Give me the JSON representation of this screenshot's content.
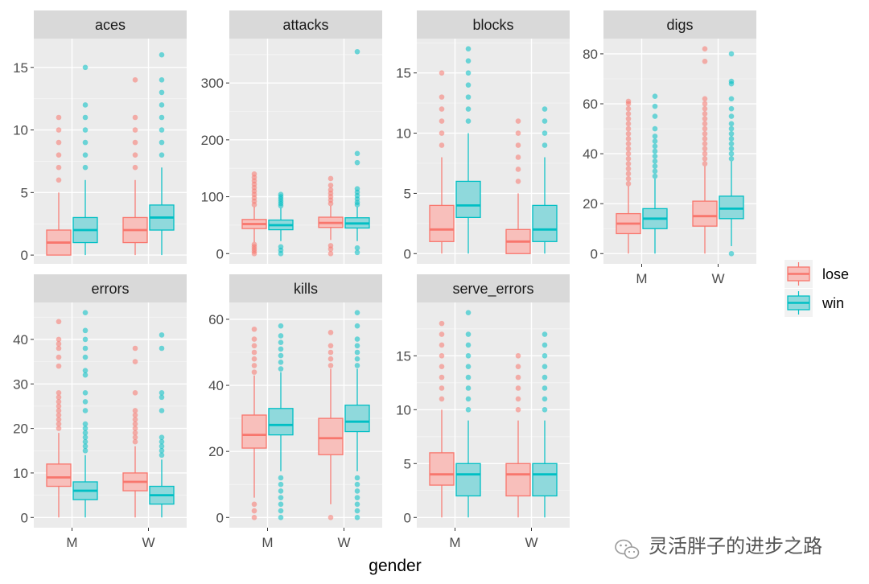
{
  "chart_data": {
    "type": "boxplot",
    "x_title": "gender",
    "categories": [
      "M",
      "W"
    ],
    "groups": [
      "lose",
      "win"
    ],
    "colors": {
      "lose": "#F8766D",
      "win": "#00BFC4"
    },
    "fills": {
      "lose": "#F8BFBB",
      "win": "#8FD9DC"
    },
    "legend": {
      "position": "right",
      "items": [
        "lose",
        "win"
      ]
    },
    "panels": [
      {
        "name": "aces",
        "ylim": [
          -0.7,
          17.3
        ],
        "ticks": [
          0,
          5,
          10,
          15
        ],
        "boxes": {
          "M": {
            "lose": {
              "min": 0,
              "q1": 0,
              "median": 1,
              "q3": 2,
              "max": 5,
              "outliers": [
                6,
                7,
                8,
                9,
                10,
                11
              ]
            },
            "win": {
              "min": 0,
              "q1": 1,
              "median": 2,
              "q3": 3,
              "max": 6,
              "outliers": [
                7,
                8,
                9,
                10,
                11,
                12,
                15
              ]
            }
          },
          "W": {
            "lose": {
              "min": 0,
              "q1": 1,
              "median": 2,
              "q3": 3,
              "max": 6,
              "outliers": [
                7,
                8,
                9,
                10,
                11,
                14
              ]
            },
            "win": {
              "min": 0,
              "q1": 2,
              "median": 3,
              "q3": 4,
              "max": 7,
              "outliers": [
                8,
                9,
                10,
                11,
                12,
                13,
                14,
                16
              ]
            }
          }
        }
      },
      {
        "name": "attacks",
        "ylim": [
          -18,
          378
        ],
        "ticks": [
          0,
          100,
          200,
          300
        ],
        "boxes": {
          "M": {
            "lose": {
              "min": 20,
              "q1": 44,
              "median": 52,
              "q3": 60,
              "max": 82,
              "outliers": [
                0,
                4,
                8,
                12,
                16,
                86,
                92,
                98,
                104,
                110,
                116,
                122,
                128,
                134,
                140
              ]
            },
            "win": {
              "min": 22,
              "q1": 42,
              "median": 50,
              "q3": 59,
              "max": 80,
              "outliers": [
                0,
                6,
                12,
                84,
                88,
                92,
                96,
                100,
                104
              ]
            }
          },
          "W": {
            "lose": {
              "min": 24,
              "q1": 46,
              "median": 54,
              "q3": 64,
              "max": 84,
              "outliers": [
                0,
                8,
                14,
                88,
                94,
                100,
                106,
                112,
                120,
                132
              ]
            },
            "win": {
              "min": 22,
              "q1": 45,
              "median": 53,
              "q3": 63,
              "max": 82,
              "outliers": [
                2,
                10,
                86,
                90,
                96,
                102,
                108,
                114,
                160,
                176,
                355
              ]
            }
          }
        }
      },
      {
        "name": "blocks",
        "ylim": [
          -0.85,
          17.85
        ],
        "ticks": [
          0,
          5,
          10,
          15
        ],
        "boxes": {
          "M": {
            "lose": {
              "min": 0,
              "q1": 1,
              "median": 2,
              "q3": 4,
              "max": 8,
              "outliers": [
                9,
                10,
                11,
                12,
                13,
                15
              ]
            },
            "win": {
              "min": 0,
              "q1": 3,
              "median": 4,
              "q3": 6,
              "max": 10,
              "outliers": [
                11,
                12,
                13,
                14,
                15,
                16,
                17
              ]
            }
          },
          "W": {
            "lose": {
              "min": 0,
              "q1": 0,
              "median": 1,
              "q3": 2,
              "max": 5,
              "outliers": [
                6,
                7,
                8,
                9,
                10,
                11
              ]
            },
            "win": {
              "min": 0,
              "q1": 1,
              "median": 2,
              "q3": 4,
              "max": 8,
              "outliers": [
                9,
                10,
                11,
                12
              ]
            }
          }
        }
      },
      {
        "name": "digs",
        "ylim": [
          -4.1,
          86.1
        ],
        "ticks": [
          0,
          20,
          40,
          60,
          80
        ],
        "boxes": {
          "M": {
            "lose": {
              "min": 0,
              "q1": 8,
              "median": 12,
              "q3": 16,
              "max": 27,
              "outliers": [
                28,
                30,
                32,
                34,
                36,
                38,
                40,
                42,
                44,
                46,
                48,
                50,
                52,
                54,
                56,
                58,
                60,
                61
              ]
            },
            "win": {
              "min": 0,
              "q1": 10,
              "median": 14,
              "q3": 18,
              "max": 30,
              "outliers": [
                31,
                33,
                35,
                37,
                39,
                41,
                43,
                45,
                47,
                50,
                55,
                59,
                63
              ]
            }
          },
          "W": {
            "lose": {
              "min": 0,
              "q1": 11,
              "median": 15,
              "q3": 21,
              "max": 35,
              "outliers": [
                36,
                38,
                40,
                42,
                44,
                46,
                48,
                50,
                52,
                54,
                56,
                58,
                60,
                62,
                77,
                82
              ]
            },
            "win": {
              "min": 3,
              "q1": 14,
              "median": 18,
              "q3": 23,
              "max": 37,
              "outliers": [
                0,
                38,
                40,
                42,
                44,
                46,
                48,
                50,
                52,
                55,
                58,
                62,
                68,
                69,
                80
              ]
            }
          }
        }
      },
      {
        "name": "errors",
        "ylim": [
          -2.3,
          48.3
        ],
        "ticks": [
          0,
          10,
          20,
          30,
          40
        ],
        "boxes": {
          "M": {
            "lose": {
              "min": 0,
              "q1": 7,
              "median": 9,
              "q3": 12,
              "max": 19,
              "outliers": [
                20,
                21,
                22,
                23,
                24,
                25,
                26,
                27,
                28,
                34,
                36,
                38,
                39,
                40,
                44
              ]
            },
            "win": {
              "min": 0,
              "q1": 4,
              "median": 6,
              "q3": 8,
              "max": 14,
              "outliers": [
                15,
                16,
                17,
                18,
                19,
                20,
                21,
                24,
                26,
                28,
                32,
                33,
                36,
                38,
                40,
                42,
                46
              ]
            }
          },
          "W": {
            "lose": {
              "min": 0,
              "q1": 6,
              "median": 8,
              "q3": 10,
              "max": 16,
              "outliers": [
                17,
                18,
                19,
                20,
                21,
                22,
                23,
                24,
                28,
                35,
                38
              ]
            },
            "win": {
              "min": 0,
              "q1": 3,
              "median": 5,
              "q3": 7,
              "max": 13,
              "outliers": [
                14,
                15,
                16,
                17,
                18,
                24,
                27,
                28,
                38,
                41
              ]
            }
          }
        }
      },
      {
        "name": "kills",
        "ylim": [
          -3.1,
          65.1
        ],
        "ticks": [
          0,
          20,
          40,
          60
        ],
        "boxes": {
          "M": {
            "lose": {
              "min": 6,
              "q1": 21,
              "median": 25,
              "q3": 31,
              "max": 43,
              "outliers": [
                0,
                2,
                4,
                44,
                46,
                48,
                50,
                52,
                54,
                57
              ]
            },
            "win": {
              "min": 14,
              "q1": 25,
              "median": 28,
              "q3": 33,
              "max": 44,
              "outliers": [
                0,
                2,
                4,
                6,
                8,
                10,
                12,
                45,
                47,
                49,
                51,
                53,
                55,
                58
              ]
            }
          },
          "W": {
            "lose": {
              "min": 4,
              "q1": 19,
              "median": 24,
              "q3": 30,
              "max": 45,
              "outliers": [
                0,
                46,
                48,
                50,
                52,
                56
              ]
            },
            "win": {
              "min": 14,
              "q1": 26,
              "median": 29,
              "q3": 34,
              "max": 45,
              "outliers": [
                0,
                2,
                4,
                6,
                8,
                10,
                12,
                46,
                48,
                50,
                52,
                54,
                58,
                62
              ]
            }
          }
        }
      },
      {
        "name": "serve_errors",
        "ylim": [
          -0.95,
          19.95
        ],
        "ticks": [
          0,
          5,
          10,
          15
        ],
        "boxes": {
          "M": {
            "lose": {
              "min": 0,
              "q1": 3,
              "median": 4,
              "q3": 6,
              "max": 10,
              "outliers": [
                11,
                12,
                13,
                14,
                15,
                16,
                17,
                18
              ]
            },
            "win": {
              "min": 0,
              "q1": 2,
              "median": 4,
              "q3": 5,
              "max": 9,
              "outliers": [
                10,
                11,
                12,
                13,
                14,
                15,
                16,
                17,
                19
              ]
            }
          },
          "W": {
            "lose": {
              "min": 0,
              "q1": 2,
              "median": 4,
              "q3": 5,
              "max": 9,
              "outliers": [
                10,
                11,
                12,
                13,
                14,
                15
              ]
            },
            "win": {
              "min": 0,
              "q1": 2,
              "median": 4,
              "q3": 5,
              "max": 9,
              "outliers": [
                10,
                11,
                12,
                13,
                14,
                15,
                16,
                17
              ]
            }
          }
        }
      }
    ]
  },
  "watermark": {
    "icon": "wechat-icon",
    "text": "灵活胖子的进步之路"
  }
}
